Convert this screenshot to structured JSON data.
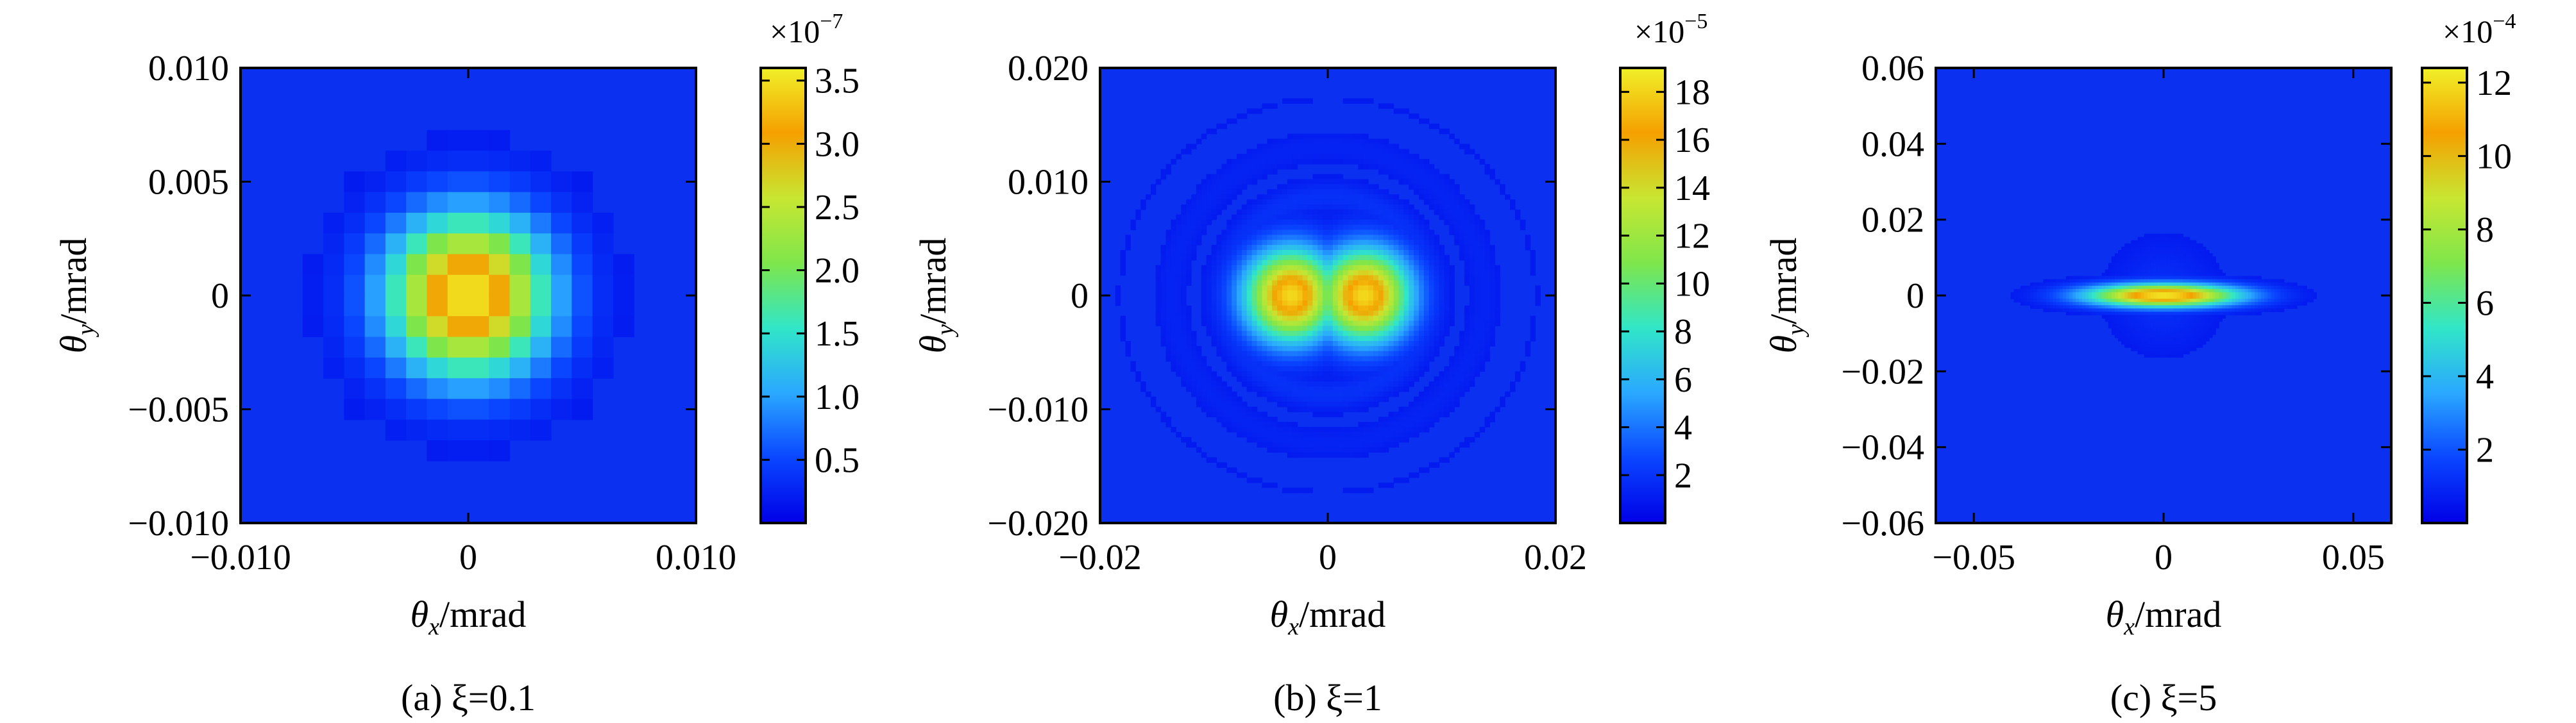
{
  "colors": {
    "colormap": [
      "#0000e6",
      "#0a46ff",
      "#2aa8ff",
      "#31e6c8",
      "#7ee64b",
      "#c8e632",
      "#f5a000",
      "#f0f028"
    ],
    "background_map": "#0b30f0",
    "frame": "#000000"
  },
  "chart_data": [
    {
      "type": "heatmap",
      "caption": "(a) ξ=0.1",
      "xlabel_sym": "θ",
      "xlabel_sub": "x",
      "xlabel_unit": "/mrad",
      "ylabel_sym": "θ",
      "ylabel_sub": "y",
      "ylabel_unit": "/mrad",
      "xlim": [
        -0.01,
        0.01
      ],
      "ylim": [
        -0.01,
        0.01
      ],
      "xticks": [
        -0.01,
        0,
        0.01
      ],
      "xtick_labels": [
        "−0.010",
        "0",
        "0.010"
      ],
      "yticks": [
        0.01,
        0.005,
        0,
        -0.005,
        -0.01
      ],
      "ytick_labels": [
        "0.010",
        "0.005",
        "0",
        "−0.005",
        "−0.010"
      ],
      "colorbar": {
        "min": 0,
        "max": 3.6,
        "ticks": [
          0.5,
          1.0,
          1.5,
          2.0,
          2.5,
          3.0,
          3.5
        ],
        "tick_labels": [
          "0.5",
          "1.0",
          "1.5",
          "2.0",
          "2.5",
          "3.0",
          "3.5"
        ],
        "multiplier": "×10",
        "exponent": "−7"
      },
      "pattern": "pixelated single lobe centered at (0, 0), peak ≈ 3.5×10⁻⁷"
    },
    {
      "type": "heatmap",
      "caption": "(b) ξ=1",
      "xlabel_sym": "θ",
      "xlabel_sub": "x",
      "xlabel_unit": "/mrad",
      "ylabel_sym": "θ",
      "ylabel_sub": "y",
      "ylabel_unit": "/mrad",
      "xlim": [
        -0.02,
        0.02
      ],
      "ylim": [
        -0.02,
        0.02
      ],
      "xticks": [
        -0.02,
        0,
        0.02
      ],
      "xtick_labels": [
        "−0.02",
        "0",
        "0.02"
      ],
      "yticks": [
        0.02,
        0.01,
        0,
        -0.01,
        -0.02
      ],
      "ytick_labels": [
        "0.020",
        "0.010",
        "0",
        "−0.010",
        "−0.020"
      ],
      "colorbar": {
        "min": 0,
        "max": 19,
        "ticks": [
          2,
          4,
          6,
          8,
          10,
          12,
          14,
          16,
          18
        ],
        "tick_labels": [
          "2",
          "4",
          "6",
          "8",
          "10",
          "12",
          "14",
          "16",
          "18"
        ],
        "multiplier": "×10",
        "exponent": "−5"
      },
      "pattern": "two lobes at θx ≈ ±0.003 mrad, peak ≈ 1.8×10⁻⁴, faint ring halo"
    },
    {
      "type": "heatmap",
      "caption": "(c) ξ=5",
      "xlabel_sym": "θ",
      "xlabel_sub": "x",
      "xlabel_unit": "/mrad",
      "ylabel_sym": "θ",
      "ylabel_sub": "y",
      "ylabel_unit": "/mrad",
      "xlim": [
        -0.06,
        0.06
      ],
      "ylim": [
        -0.06,
        0.06
      ],
      "xticks": [
        -0.05,
        0,
        0.05
      ],
      "xtick_labels": [
        "−0.05",
        "0",
        "0.05"
      ],
      "yticks": [
        0.06,
        0.04,
        0.02,
        0,
        -0.02,
        -0.04,
        -0.06
      ],
      "ytick_labels": [
        "0.06",
        "0.04",
        "0.02",
        "0",
        "−0.02",
        "−0.04",
        "−0.06"
      ],
      "colorbar": {
        "min": 0,
        "max": 12.4,
        "ticks": [
          2,
          4,
          6,
          8,
          10,
          12
        ],
        "tick_labels": [
          "2",
          "4",
          "6",
          "8",
          "10",
          "12"
        ],
        "multiplier": "×10",
        "exponent": "−4"
      },
      "pattern": "thin horizontal ellipse along θy = 0, peak ≈ 1.2×10⁻³ at center"
    }
  ]
}
